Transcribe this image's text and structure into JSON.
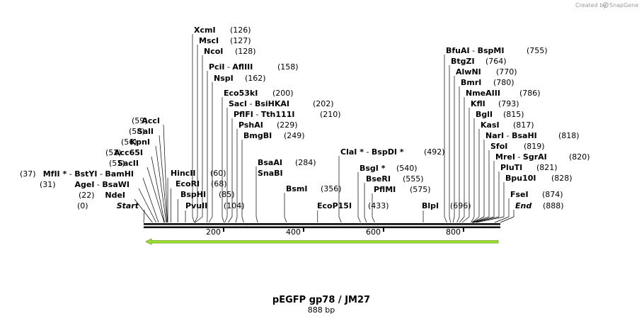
{
  "credit": {
    "prefix": "Created by",
    "brand": "SnapGene",
    "icon": "snapgene-logo-icon"
  },
  "map": {
    "title": "pEGFP gp78 / JM27",
    "subtitle": "888 bp",
    "length": 888,
    "ruler_ticks": [
      "200",
      "400",
      "600",
      "800"
    ],
    "feature_arrow": {
      "direction": "reverse",
      "color": "#99e22c",
      "outline": "#6a9e1c",
      "start": 1,
      "end": 888
    }
  },
  "left_labels": [
    {
      "pos": "(59)",
      "names": [
        "AccI"
      ]
    },
    {
      "pos": "(58)",
      "names": [
        "SalI"
      ]
    },
    {
      "pos": "(56)",
      "names": [
        "KpnI"
      ]
    },
    {
      "pos": "(52)",
      "names": [
        "Acc65I"
      ]
    },
    {
      "pos": "(51)",
      "names": [
        "SacII"
      ]
    },
    {
      "pos": "(37)",
      "names": [
        "MfII *",
        "BstYI",
        "BamHI"
      ]
    },
    {
      "pos": "(31)",
      "names": [
        "AgeI",
        "BsaWI"
      ]
    },
    {
      "pos": "(22)",
      "names": [
        "NdeI"
      ]
    },
    {
      "pos": "(0)",
      "names": [
        "Start"
      ],
      "italic": true
    }
  ],
  "right_labels": [
    {
      "pos": "(126)",
      "names": [
        "XcmI"
      ]
    },
    {
      "pos": "(127)",
      "names": [
        "MscI"
      ]
    },
    {
      "pos": "(128)",
      "names": [
        "NcoI"
      ]
    },
    {
      "pos": "(158)",
      "names": [
        "PciI",
        "AflIII"
      ]
    },
    {
      "pos": "(162)",
      "names": [
        "NspI"
      ]
    },
    {
      "pos": "(200)",
      "names": [
        "Eco53kI"
      ]
    },
    {
      "pos": "(202)",
      "names": [
        "SacI",
        "BsiHKAI"
      ]
    },
    {
      "pos": "(210)",
      "names": [
        "PflFI",
        "Tth111I"
      ]
    },
    {
      "pos": "(229)",
      "names": [
        "PshAI"
      ]
    },
    {
      "pos": "(249)",
      "names": [
        "BmgBI"
      ]
    },
    {
      "pos": "(284)",
      "names": [
        "BsaAI"
      ]
    },
    {
      "pos": "",
      "names": [
        "SnaBI"
      ]
    },
    {
      "pos": "(356)",
      "names": [
        "BsmI"
      ]
    },
    {
      "pos": "(492)",
      "names": [
        "ClaI *",
        "BspDI *"
      ]
    },
    {
      "pos": "(540)",
      "names": [
        "BsgI *"
      ]
    },
    {
      "pos": "(555)",
      "names": [
        "BseRI"
      ]
    },
    {
      "pos": "(575)",
      "names": [
        "PflMI"
      ]
    },
    {
      "pos": "(755)",
      "names": [
        "BfuAI",
        "BspMI"
      ]
    },
    {
      "pos": "(764)",
      "names": [
        "BtgZI"
      ]
    },
    {
      "pos": "(770)",
      "names": [
        "AlwNI"
      ]
    },
    {
      "pos": "(780)",
      "names": [
        "BmrI"
      ]
    },
    {
      "pos": "(786)",
      "names": [
        "NmeAIII"
      ]
    },
    {
      "pos": "(793)",
      "names": [
        "KflI"
      ]
    },
    {
      "pos": "(815)",
      "names": [
        "BglI"
      ]
    },
    {
      "pos": "(817)",
      "names": [
        "KasI"
      ]
    },
    {
      "pos": "(818)",
      "names": [
        "NarI",
        "BsaHI"
      ]
    },
    {
      "pos": "(819)",
      "names": [
        "SfoI"
      ]
    },
    {
      "pos": "(820)",
      "names": [
        "MreI",
        "SgrAI"
      ]
    },
    {
      "pos": "(821)",
      "names": [
        "PluTI"
      ]
    },
    {
      "pos": "(828)",
      "names": [
        "Bpu10I"
      ]
    },
    {
      "pos": "(874)",
      "names": [
        "FseI"
      ]
    },
    {
      "pos": "(888)",
      "names": [
        "End"
      ],
      "italic": true
    }
  ],
  "inline_labels": [
    {
      "pos": "(60)",
      "names": [
        "HincII"
      ]
    },
    {
      "pos": "(68)",
      "names": [
        "EcoRI"
      ]
    },
    {
      "pos": "(85)",
      "names": [
        "BspHI"
      ]
    },
    {
      "pos": "(104)",
      "names": [
        "PvuII"
      ]
    },
    {
      "pos": "(433)",
      "names": [
        "EcoP15I"
      ]
    },
    {
      "pos": "(696)",
      "names": [
        "BlpI"
      ]
    }
  ]
}
